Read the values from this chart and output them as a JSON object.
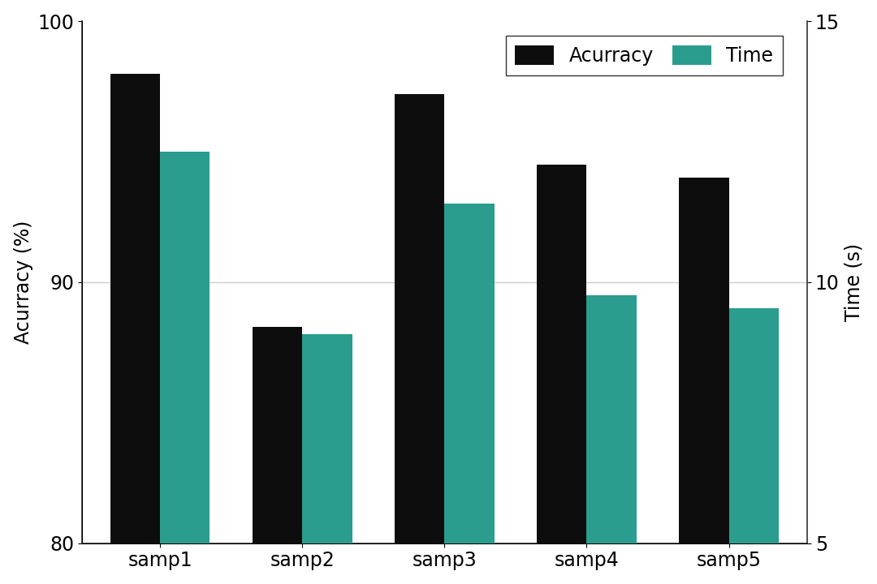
{
  "categories": [
    "samp1",
    "samp2",
    "samp3",
    "samp4",
    "samp5"
  ],
  "accuracy": [
    98.0,
    88.3,
    97.2,
    94.5,
    94.0
  ],
  "time": [
    12.5,
    9.0,
    11.5,
    9.75,
    9.5
  ],
  "bar_color_accuracy": "#0d0d0d",
  "bar_color_time": "#2a9d8f",
  "ylabel_left": "Acurracy (%)",
  "ylabel_right": "Time (s)",
  "ylim_left": [
    80,
    100
  ],
  "ylim_right": [
    5,
    15
  ],
  "yticks_left": [
    80,
    90,
    100
  ],
  "yticks_right": [
    5,
    10,
    15
  ],
  "legend_labels": [
    "Acurracy",
    "Time"
  ],
  "background_color": "#ffffff",
  "bar_width": 0.35,
  "grid_color": "#cccccc",
  "font_size": 17,
  "label_fontsize": 17
}
